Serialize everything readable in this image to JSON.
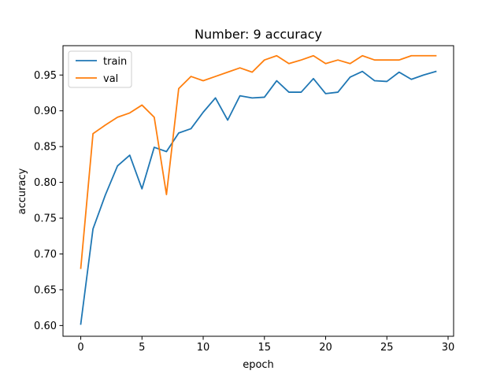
{
  "chart_data": {
    "type": "line",
    "title": "Number: 9 accuracy",
    "xlabel": "epoch",
    "ylabel": "accuracy",
    "xlim": [
      -1.45,
      30.45
    ],
    "ylim": [
      0.585,
      0.991
    ],
    "xticks": [
      0,
      5,
      10,
      15,
      20,
      25,
      30
    ],
    "yticks": [
      0.6,
      0.65,
      0.7,
      0.75,
      0.8,
      0.85,
      0.9,
      0.95
    ],
    "xtick_labels": [
      "0",
      "5",
      "10",
      "15",
      "20",
      "25",
      "30"
    ],
    "ytick_labels": [
      "0.60",
      "0.65",
      "0.70",
      "0.75",
      "0.80",
      "0.85",
      "0.90",
      "0.95"
    ],
    "grid": false,
    "legend_position": "upper-left",
    "x": [
      0,
      1,
      2,
      3,
      4,
      5,
      6,
      7,
      8,
      9,
      10,
      11,
      12,
      13,
      14,
      15,
      16,
      17,
      18,
      19,
      20,
      21,
      22,
      23,
      24,
      25,
      26,
      27,
      28,
      29
    ],
    "series": [
      {
        "name": "train",
        "color": "#1f77b4",
        "values": [
          0.602,
          0.735,
          0.782,
          0.823,
          0.838,
          0.791,
          0.849,
          0.843,
          0.869,
          0.875,
          0.898,
          0.918,
          0.887,
          0.921,
          0.918,
          0.919,
          0.942,
          0.926,
          0.926,
          0.945,
          0.924,
          0.926,
          0.947,
          0.955,
          0.942,
          0.941,
          0.954,
          0.944,
          0.95,
          0.955
        ]
      },
      {
        "name": "val",
        "color": "#ff7f0e",
        "values": [
          0.68,
          0.868,
          0.88,
          0.891,
          0.897,
          0.908,
          0.891,
          0.783,
          0.931,
          0.948,
          0.942,
          0.948,
          0.954,
          0.96,
          0.954,
          0.971,
          0.977,
          0.966,
          0.971,
          0.977,
          0.966,
          0.971,
          0.966,
          0.977,
          0.971,
          0.971,
          0.971,
          0.977,
          0.977,
          0.977
        ]
      }
    ]
  }
}
